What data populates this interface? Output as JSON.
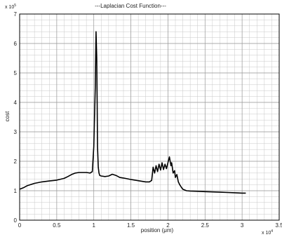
{
  "chart_data": {
    "type": "line",
    "title": "---Laplacian Cost Function---",
    "xlabel": "position (μm)",
    "ylabel": "cost",
    "x_exponent_label": "x 10",
    "x_exponent": "4",
    "y_exponent_label": "x 10",
    "y_exponent": "5",
    "xlim": [
      0,
      3.5
    ],
    "ylim": [
      0,
      7
    ],
    "x_ticks": [
      "0",
      "0.5",
      "1",
      "1.5",
      "2",
      "2.5",
      "3",
      "3.5"
    ],
    "y_ticks": [
      "0",
      "1",
      "2",
      "3",
      "4",
      "5",
      "6",
      "7"
    ],
    "grid": true,
    "colors": {
      "line": "#000000",
      "grid": "#c8c8c8",
      "axis": "#000000"
    },
    "series": [
      {
        "x": [
          0,
          0.05,
          0.1,
          0.2,
          0.3,
          0.4,
          0.5,
          0.6,
          0.65,
          0.7,
          0.75,
          0.8,
          0.9,
          0.95,
          0.98,
          1.0,
          1.02,
          1.03,
          1.04,
          1.045,
          1.05,
          1.06,
          1.07,
          1.08,
          1.1,
          1.15,
          1.2,
          1.25,
          1.3,
          1.35,
          1.4,
          1.5,
          1.6,
          1.7,
          1.75,
          1.78,
          1.8,
          1.82,
          1.84,
          1.86,
          1.88,
          1.9,
          1.92,
          1.94,
          1.96,
          1.98,
          2.0,
          2.02,
          2.04,
          2.05,
          2.07,
          2.09,
          2.1,
          2.12,
          2.14,
          2.16,
          2.18,
          2.2,
          2.25,
          2.3,
          2.4,
          2.5,
          2.6,
          2.7,
          2.8,
          2.9,
          3.0,
          3.05
        ],
        "y": [
          1.05,
          1.1,
          1.17,
          1.25,
          1.3,
          1.33,
          1.36,
          1.42,
          1.48,
          1.55,
          1.6,
          1.62,
          1.62,
          1.6,
          1.65,
          2.5,
          4.5,
          6.4,
          5.5,
          4.0,
          2.5,
          1.8,
          1.6,
          1.52,
          1.5,
          1.48,
          1.5,
          1.56,
          1.52,
          1.45,
          1.43,
          1.38,
          1.34,
          1.3,
          1.3,
          1.35,
          1.8,
          1.6,
          1.85,
          1.65,
          1.9,
          1.7,
          1.95,
          1.72,
          1.9,
          1.75,
          1.95,
          2.15,
          1.85,
          1.95,
          1.6,
          1.68,
          1.45,
          1.55,
          1.3,
          1.2,
          1.12,
          1.05,
          1.0,
          0.99,
          0.98,
          0.97,
          0.96,
          0.95,
          0.94,
          0.93,
          0.92,
          0.92
        ]
      }
    ]
  }
}
